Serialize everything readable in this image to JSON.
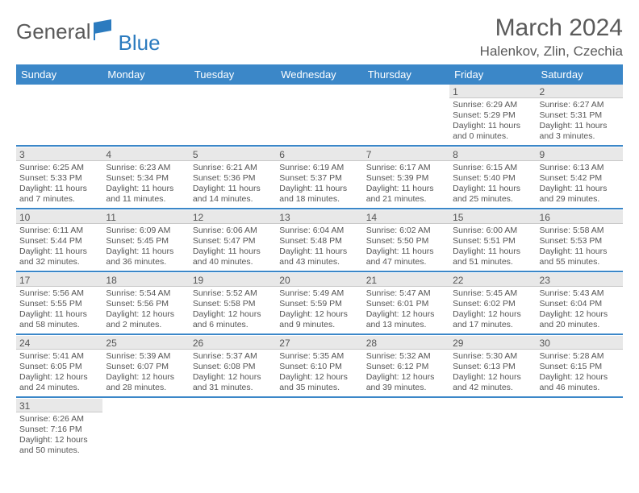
{
  "logo": {
    "part1": "General",
    "part2": "Blue"
  },
  "header": {
    "title": "March 2024",
    "location": "Halenkov, Zlin, Czechia"
  },
  "colors": {
    "header_bg": "#3b87c8",
    "header_text": "#ffffff",
    "daynum_bg": "#e8e8e8",
    "divider": "#3b87c8",
    "text": "#555555",
    "logo_gray": "#5a5a5a",
    "logo_blue": "#2b7bbf"
  },
  "dayHeaders": [
    "Sunday",
    "Monday",
    "Tuesday",
    "Wednesday",
    "Thursday",
    "Friday",
    "Saturday"
  ],
  "weeks": [
    [
      {
        "n": "",
        "sr": "",
        "ss": "",
        "dl": ""
      },
      {
        "n": "",
        "sr": "",
        "ss": "",
        "dl": ""
      },
      {
        "n": "",
        "sr": "",
        "ss": "",
        "dl": ""
      },
      {
        "n": "",
        "sr": "",
        "ss": "",
        "dl": ""
      },
      {
        "n": "",
        "sr": "",
        "ss": "",
        "dl": ""
      },
      {
        "n": "1",
        "sr": "Sunrise: 6:29 AM",
        "ss": "Sunset: 5:29 PM",
        "dl": "Daylight: 11 hours and 0 minutes."
      },
      {
        "n": "2",
        "sr": "Sunrise: 6:27 AM",
        "ss": "Sunset: 5:31 PM",
        "dl": "Daylight: 11 hours and 3 minutes."
      }
    ],
    [
      {
        "n": "3",
        "sr": "Sunrise: 6:25 AM",
        "ss": "Sunset: 5:33 PM",
        "dl": "Daylight: 11 hours and 7 minutes."
      },
      {
        "n": "4",
        "sr": "Sunrise: 6:23 AM",
        "ss": "Sunset: 5:34 PM",
        "dl": "Daylight: 11 hours and 11 minutes."
      },
      {
        "n": "5",
        "sr": "Sunrise: 6:21 AM",
        "ss": "Sunset: 5:36 PM",
        "dl": "Daylight: 11 hours and 14 minutes."
      },
      {
        "n": "6",
        "sr": "Sunrise: 6:19 AM",
        "ss": "Sunset: 5:37 PM",
        "dl": "Daylight: 11 hours and 18 minutes."
      },
      {
        "n": "7",
        "sr": "Sunrise: 6:17 AM",
        "ss": "Sunset: 5:39 PM",
        "dl": "Daylight: 11 hours and 21 minutes."
      },
      {
        "n": "8",
        "sr": "Sunrise: 6:15 AM",
        "ss": "Sunset: 5:40 PM",
        "dl": "Daylight: 11 hours and 25 minutes."
      },
      {
        "n": "9",
        "sr": "Sunrise: 6:13 AM",
        "ss": "Sunset: 5:42 PM",
        "dl": "Daylight: 11 hours and 29 minutes."
      }
    ],
    [
      {
        "n": "10",
        "sr": "Sunrise: 6:11 AM",
        "ss": "Sunset: 5:44 PM",
        "dl": "Daylight: 11 hours and 32 minutes."
      },
      {
        "n": "11",
        "sr": "Sunrise: 6:09 AM",
        "ss": "Sunset: 5:45 PM",
        "dl": "Daylight: 11 hours and 36 minutes."
      },
      {
        "n": "12",
        "sr": "Sunrise: 6:06 AM",
        "ss": "Sunset: 5:47 PM",
        "dl": "Daylight: 11 hours and 40 minutes."
      },
      {
        "n": "13",
        "sr": "Sunrise: 6:04 AM",
        "ss": "Sunset: 5:48 PM",
        "dl": "Daylight: 11 hours and 43 minutes."
      },
      {
        "n": "14",
        "sr": "Sunrise: 6:02 AM",
        "ss": "Sunset: 5:50 PM",
        "dl": "Daylight: 11 hours and 47 minutes."
      },
      {
        "n": "15",
        "sr": "Sunrise: 6:00 AM",
        "ss": "Sunset: 5:51 PM",
        "dl": "Daylight: 11 hours and 51 minutes."
      },
      {
        "n": "16",
        "sr": "Sunrise: 5:58 AM",
        "ss": "Sunset: 5:53 PM",
        "dl": "Daylight: 11 hours and 55 minutes."
      }
    ],
    [
      {
        "n": "17",
        "sr": "Sunrise: 5:56 AM",
        "ss": "Sunset: 5:55 PM",
        "dl": "Daylight: 11 hours and 58 minutes."
      },
      {
        "n": "18",
        "sr": "Sunrise: 5:54 AM",
        "ss": "Sunset: 5:56 PM",
        "dl": "Daylight: 12 hours and 2 minutes."
      },
      {
        "n": "19",
        "sr": "Sunrise: 5:52 AM",
        "ss": "Sunset: 5:58 PM",
        "dl": "Daylight: 12 hours and 6 minutes."
      },
      {
        "n": "20",
        "sr": "Sunrise: 5:49 AM",
        "ss": "Sunset: 5:59 PM",
        "dl": "Daylight: 12 hours and 9 minutes."
      },
      {
        "n": "21",
        "sr": "Sunrise: 5:47 AM",
        "ss": "Sunset: 6:01 PM",
        "dl": "Daylight: 12 hours and 13 minutes."
      },
      {
        "n": "22",
        "sr": "Sunrise: 5:45 AM",
        "ss": "Sunset: 6:02 PM",
        "dl": "Daylight: 12 hours and 17 minutes."
      },
      {
        "n": "23",
        "sr": "Sunrise: 5:43 AM",
        "ss": "Sunset: 6:04 PM",
        "dl": "Daylight: 12 hours and 20 minutes."
      }
    ],
    [
      {
        "n": "24",
        "sr": "Sunrise: 5:41 AM",
        "ss": "Sunset: 6:05 PM",
        "dl": "Daylight: 12 hours and 24 minutes."
      },
      {
        "n": "25",
        "sr": "Sunrise: 5:39 AM",
        "ss": "Sunset: 6:07 PM",
        "dl": "Daylight: 12 hours and 28 minutes."
      },
      {
        "n": "26",
        "sr": "Sunrise: 5:37 AM",
        "ss": "Sunset: 6:08 PM",
        "dl": "Daylight: 12 hours and 31 minutes."
      },
      {
        "n": "27",
        "sr": "Sunrise: 5:35 AM",
        "ss": "Sunset: 6:10 PM",
        "dl": "Daylight: 12 hours and 35 minutes."
      },
      {
        "n": "28",
        "sr": "Sunrise: 5:32 AM",
        "ss": "Sunset: 6:12 PM",
        "dl": "Daylight: 12 hours and 39 minutes."
      },
      {
        "n": "29",
        "sr": "Sunrise: 5:30 AM",
        "ss": "Sunset: 6:13 PM",
        "dl": "Daylight: 12 hours and 42 minutes."
      },
      {
        "n": "30",
        "sr": "Sunrise: 5:28 AM",
        "ss": "Sunset: 6:15 PM",
        "dl": "Daylight: 12 hours and 46 minutes."
      }
    ],
    [
      {
        "n": "31",
        "sr": "Sunrise: 6:26 AM",
        "ss": "Sunset: 7:16 PM",
        "dl": "Daylight: 12 hours and 50 minutes."
      },
      {
        "n": "",
        "sr": "",
        "ss": "",
        "dl": ""
      },
      {
        "n": "",
        "sr": "",
        "ss": "",
        "dl": ""
      },
      {
        "n": "",
        "sr": "",
        "ss": "",
        "dl": ""
      },
      {
        "n": "",
        "sr": "",
        "ss": "",
        "dl": ""
      },
      {
        "n": "",
        "sr": "",
        "ss": "",
        "dl": ""
      },
      {
        "n": "",
        "sr": "",
        "ss": "",
        "dl": ""
      }
    ]
  ]
}
